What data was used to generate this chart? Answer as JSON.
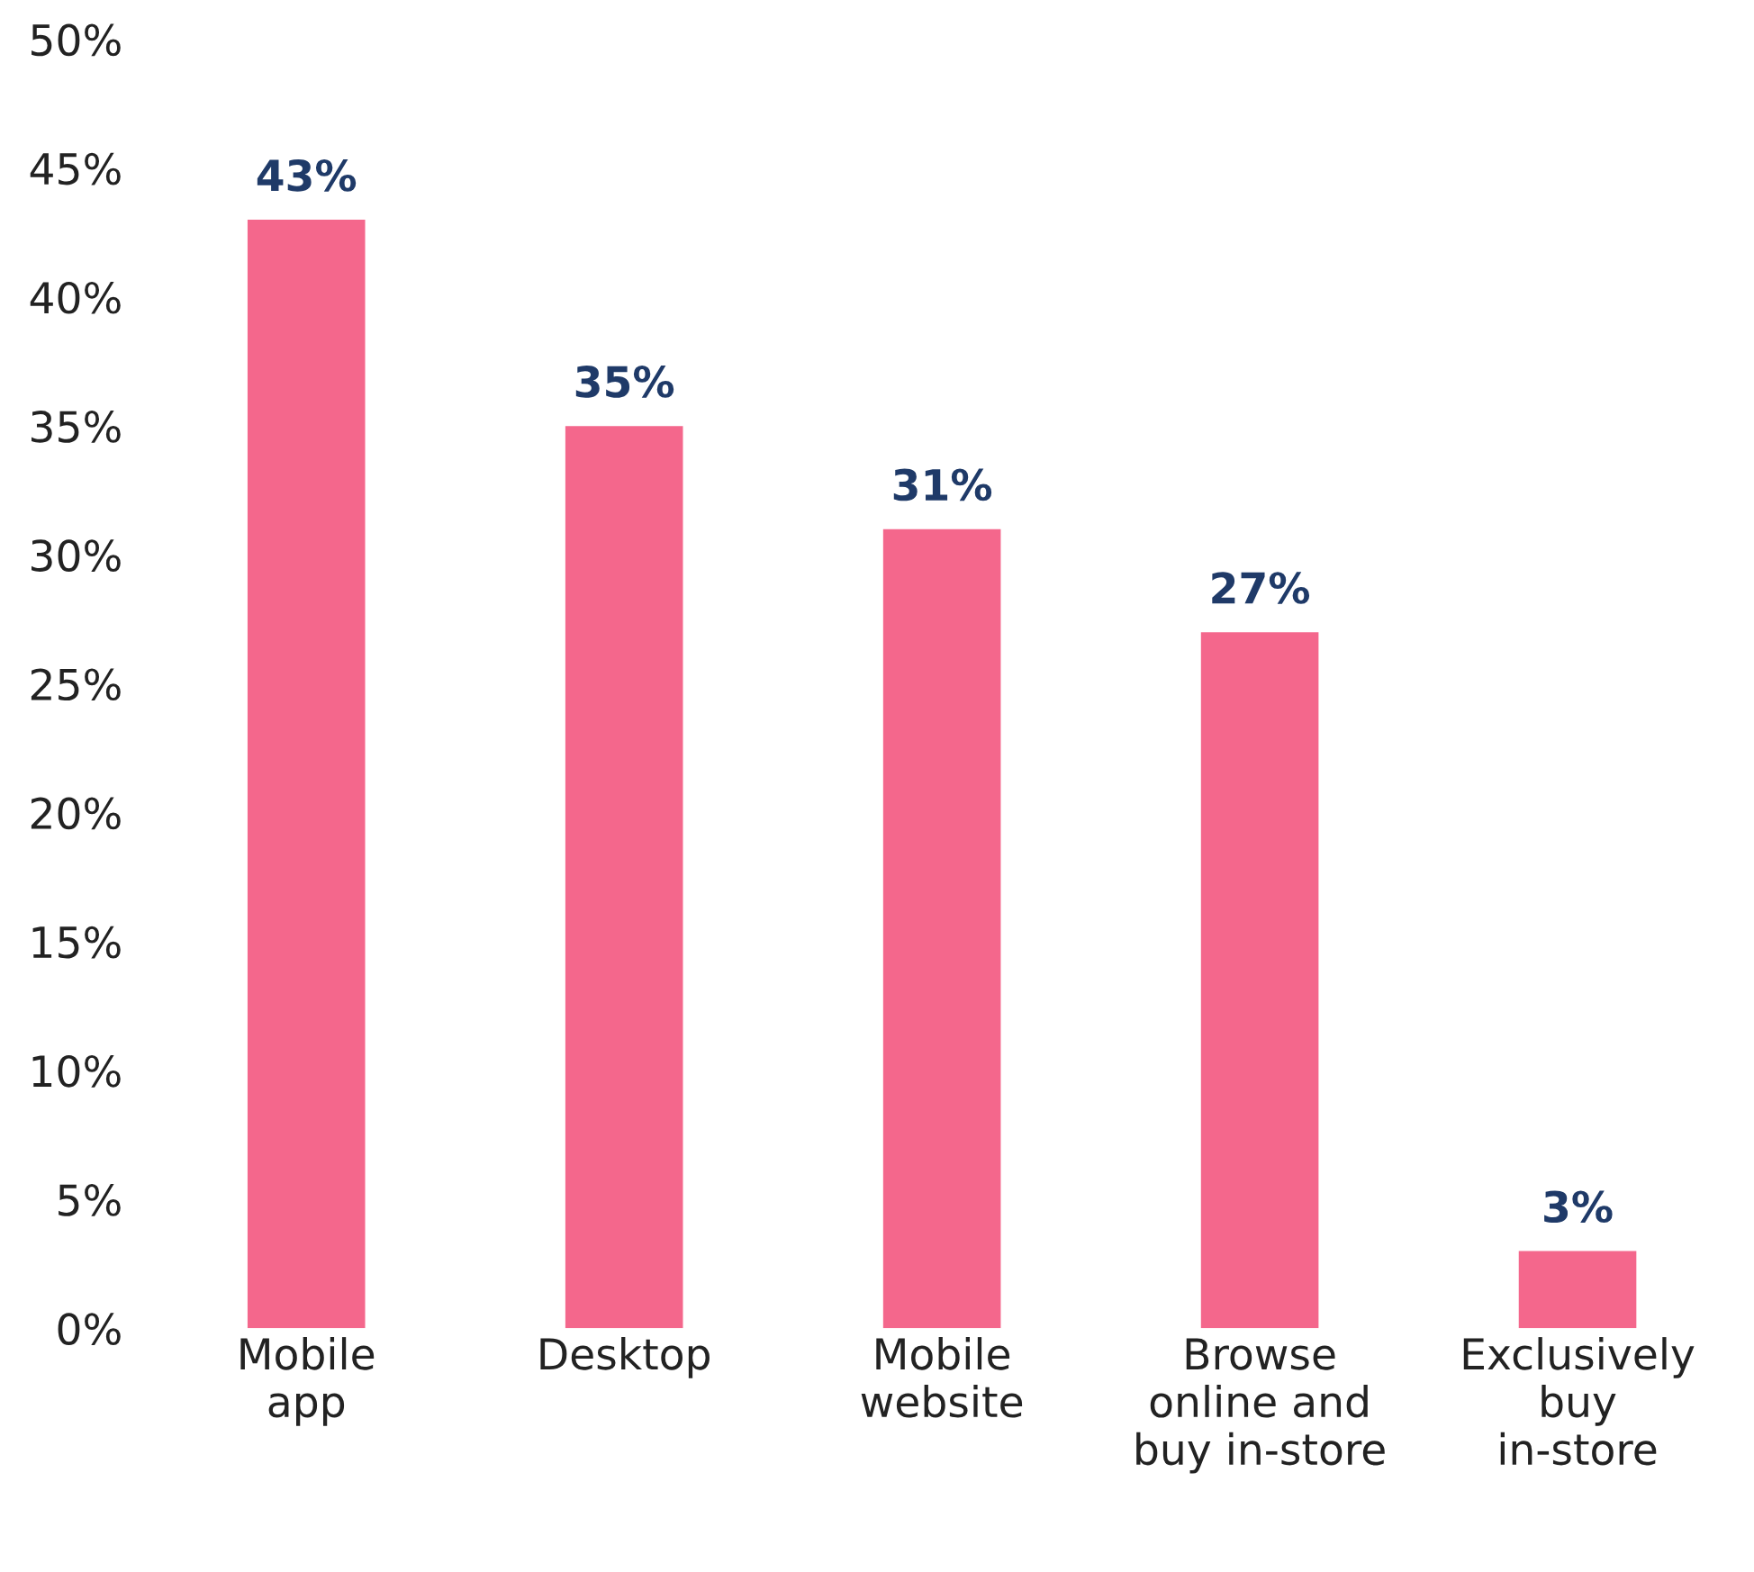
{
  "chart_data": {
    "type": "bar",
    "categories": [
      "Mobile\napp",
      "Desktop",
      "Mobile\nwebsite",
      "Browse\nonline and\nbuy in-store",
      "Exclusively\nbuy\nin-store"
    ],
    "values": [
      43,
      35,
      31,
      27,
      3
    ],
    "value_labels": [
      "43%",
      "35%",
      "31%",
      "27%",
      "3%"
    ],
    "color": "#f4678c",
    "ylim": [
      0,
      50
    ],
    "yticks": [
      {
        "value": 0,
        "label": "0%"
      },
      {
        "value": 5,
        "label": "5%"
      },
      {
        "value": 10,
        "label": "10%"
      },
      {
        "value": 15,
        "label": "15%"
      },
      {
        "value": 20,
        "label": "20%"
      },
      {
        "value": 25,
        "label": "25%"
      },
      {
        "value": 30,
        "label": "30%"
      },
      {
        "value": 35,
        "label": "35%"
      },
      {
        "value": 40,
        "label": "40%"
      },
      {
        "value": 45,
        "label": "45%"
      },
      {
        "value": 50,
        "label": "50%"
      }
    ],
    "grid": false,
    "legend": false
  }
}
